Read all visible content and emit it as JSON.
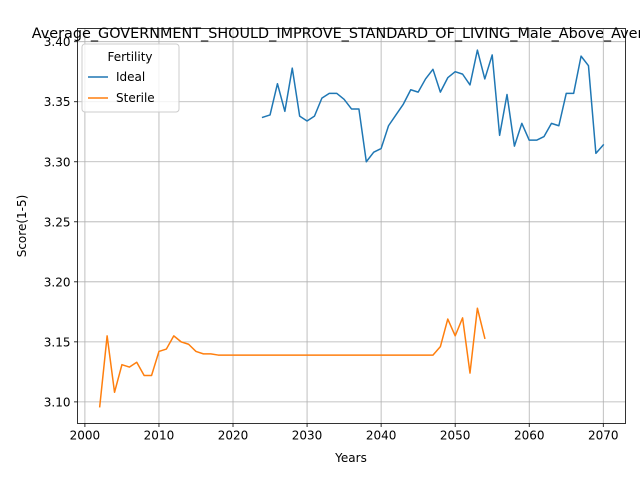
{
  "chart_data": {
    "type": "line",
    "title": "Average_GOVERNMENT_SHOULD_IMPROVE_STANDARD_OF_LIVING_Male_Above_Average",
    "xlabel": "Years",
    "ylabel": "Score(1-5)",
    "xlim": [
      1999,
      2073
    ],
    "ylim": [
      3.082,
      3.411
    ],
    "xticks": [
      2000,
      2010,
      2020,
      2030,
      2040,
      2050,
      2060,
      2070
    ],
    "yticks": [
      3.1,
      3.15,
      3.2,
      3.25,
      3.3,
      3.35,
      3.4
    ],
    "ytick_labels": [
      "3.10",
      "3.15",
      "3.20",
      "3.25",
      "3.30",
      "3.35",
      "3.40"
    ],
    "grid": true,
    "legend": {
      "title": "Fertility",
      "placement": "top-left"
    },
    "series": [
      {
        "name": "Ideal",
        "color": "#1f77b4",
        "x": [
          2024,
          2025,
          2026,
          2027,
          2028,
          2029,
          2030,
          2031,
          2032,
          2033,
          2034,
          2035,
          2036,
          2037,
          2038,
          2039,
          2040,
          2041,
          2042,
          2043,
          2044,
          2045,
          2046,
          2047,
          2048,
          2049,
          2050,
          2051,
          2052,
          2053,
          2054,
          2055,
          2056,
          2057,
          2058,
          2059,
          2060,
          2061,
          2062,
          2063,
          2064,
          2065,
          2066,
          2067,
          2068,
          2069,
          2070
        ],
        "y": [
          3.337,
          3.339,
          3.365,
          3.342,
          3.378,
          3.338,
          3.334,
          3.338,
          3.353,
          3.357,
          3.357,
          3.352,
          3.344,
          3.344,
          3.3,
          3.308,
          3.311,
          3.33,
          3.339,
          3.348,
          3.36,
          3.358,
          3.369,
          3.377,
          3.358,
          3.37,
          3.375,
          3.373,
          3.364,
          3.393,
          3.369,
          3.389,
          3.322,
          3.356,
          3.313,
          3.332,
          3.318,
          3.318,
          3.321,
          3.332,
          3.33,
          3.357,
          3.357,
          3.388,
          3.38,
          3.307,
          3.314
        ]
      },
      {
        "name": "Sterile",
        "color": "#ff7f0e",
        "x": [
          2002,
          2003,
          2004,
          2005,
          2006,
          2007,
          2008,
          2009,
          2010,
          2011,
          2012,
          2013,
          2014,
          2015,
          2016,
          2017,
          2018,
          2019,
          2020,
          2021,
          2022,
          2023,
          2024,
          2025,
          2026,
          2027,
          2028,
          2029,
          2030,
          2031,
          2032,
          2033,
          2034,
          2035,
          2036,
          2037,
          2038,
          2039,
          2040,
          2041,
          2042,
          2043,
          2044,
          2045,
          2046,
          2047,
          2048,
          2049,
          2050,
          2051,
          2052,
          2053,
          2054
        ],
        "y": [
          3.096,
          3.155,
          3.108,
          3.131,
          3.129,
          3.133,
          3.122,
          3.122,
          3.142,
          3.144,
          3.155,
          3.15,
          3.148,
          3.142,
          3.14,
          3.14,
          3.139,
          3.139,
          3.139,
          3.139,
          3.139,
          3.139,
          3.139,
          3.139,
          3.139,
          3.139,
          3.139,
          3.139,
          3.139,
          3.139,
          3.139,
          3.139,
          3.139,
          3.139,
          3.139,
          3.139,
          3.139,
          3.139,
          3.139,
          3.139,
          3.139,
          3.139,
          3.139,
          3.139,
          3.139,
          3.139,
          3.146,
          3.169,
          3.155,
          3.17,
          3.124,
          3.178,
          3.153
        ]
      }
    ]
  }
}
